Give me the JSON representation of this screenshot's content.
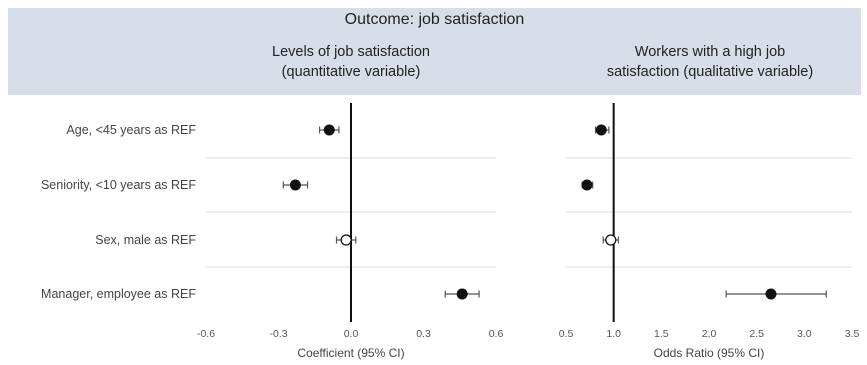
{
  "outcome_title": "Outcome: job satisfaction",
  "row_labels": [
    "Age, <45 years as REF",
    "Seniority, <10 years as REF",
    "Sex, male as REF",
    "Manager, employee as REF"
  ],
  "chart_data": [
    {
      "type": "scatter",
      "title_lines": [
        "Levels of job satisfaction",
        "(quantitative variable)"
      ],
      "xlabel": "Coefficient (95% CI)",
      "ylabel": "",
      "xlim": [
        -0.6,
        0.6
      ],
      "xticks": [
        -0.6,
        -0.3,
        0.0,
        0.3,
        0.6
      ],
      "tick_format": {
        "decimals": 1
      },
      "reference_line": 0,
      "grid": "horizontal",
      "points": [
        {
          "category": "Age, <45 years as REF",
          "estimate": -0.09,
          "ci": [
            -0.13,
            -0.05
          ],
          "filled": true
        },
        {
          "category": "Seniority, <10 years as REF",
          "estimate": -0.23,
          "ci": [
            -0.28,
            -0.18
          ],
          "filled": true
        },
        {
          "category": "Sex, male as REF",
          "estimate": -0.02,
          "ci": [
            -0.06,
            0.02
          ],
          "filled": false
        },
        {
          "category": "Manager, employee as REF",
          "estimate": 0.46,
          "ci": [
            0.39,
            0.53
          ],
          "filled": true
        }
      ]
    },
    {
      "type": "scatter",
      "title_lines": [
        "Workers with a high job",
        "satisfaction (qualitative variable)"
      ],
      "xlabel": "Odds Ratio (95% CI)",
      "ylabel": "",
      "xlim": [
        0.5,
        3.5
      ],
      "xticks": [
        0.5,
        1.0,
        1.5,
        2.0,
        2.5,
        3.0,
        3.5
      ],
      "tick_format": {
        "decimals": 1
      },
      "reference_line": 1,
      "grid": "horizontal",
      "points": [
        {
          "category": "Age, <45 years as REF",
          "estimate": 0.87,
          "ci": [
            0.81,
            0.95
          ],
          "filled": true
        },
        {
          "category": "Seniority, <10 years as REF",
          "estimate": 0.72,
          "ci": [
            0.67,
            0.78
          ],
          "filled": true
        },
        {
          "category": "Sex, male as REF",
          "estimate": 0.97,
          "ci": [
            0.89,
            1.05
          ],
          "filled": false
        },
        {
          "category": "Manager, employee as REF",
          "estimate": 2.65,
          "ci": [
            2.18,
            3.23
          ],
          "filled": true
        }
      ]
    }
  ],
  "colors": {
    "header_band": "#d7dde9",
    "marker": "#111111",
    "reference_line": "#111111",
    "gridline": "#dedede",
    "error_bar": "#555555"
  }
}
